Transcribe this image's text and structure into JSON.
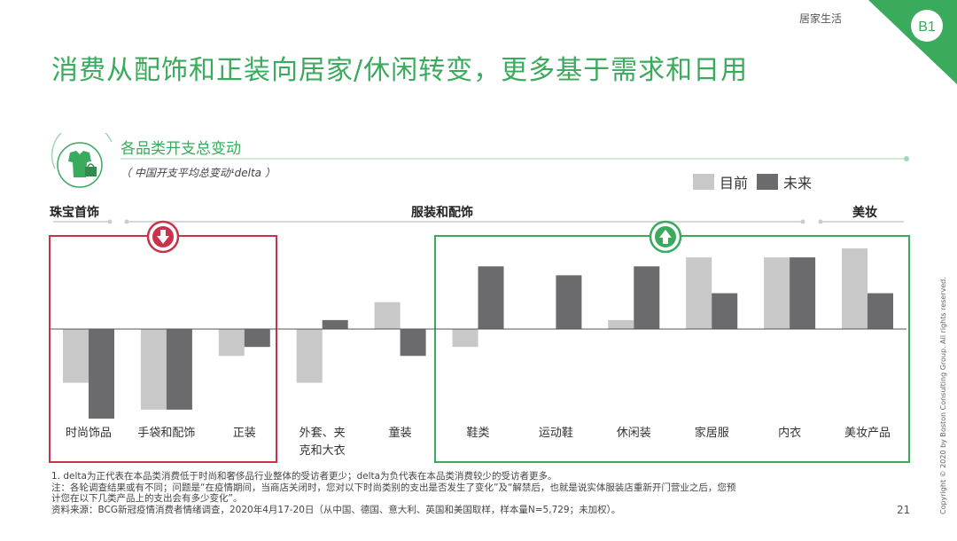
{
  "header": {
    "topic": "居家生活",
    "badge": "B1"
  },
  "title": "消费从配饰和正装向居家/休闲转变，更多基于需求和日用",
  "section": {
    "subtitle": "各品类开支总变动",
    "note": "（ 中国开支平均总变动¹delta ）"
  },
  "legend": {
    "current": "目前",
    "future": "未来"
  },
  "colors": {
    "current": "#c8c8c8",
    "future": "#6b6b6e",
    "accent_green": "#3aaa5c",
    "accent_red": "#c8324a"
  },
  "icons": {
    "section_icon": "clothing-shopping-icon",
    "down": "arrow-down-icon",
    "up": "arrow-up-icon"
  },
  "groups": [
    {
      "name": "珠宝首饰"
    },
    {
      "name": "服装和配饰"
    },
    {
      "name": "美妆"
    }
  ],
  "chart_data": {
    "type": "bar",
    "categories": [
      "时尚饰品",
      "手袋和配饰",
      "正装",
      "外套、夹克和大衣",
      "童装",
      "鞋类",
      "运动鞋",
      "休闲装",
      "家居服",
      "内衣",
      "美妆产品"
    ],
    "category_lines": [
      [
        "时尚饰品"
      ],
      [
        "手袋和配饰"
      ],
      [
        "正装"
      ],
      [
        "外套、夹",
        "克和大衣"
      ],
      [
        "童装"
      ],
      [
        "鞋类"
      ],
      [
        "运动鞋"
      ],
      [
        "休闲装"
      ],
      [
        "家居服"
      ],
      [
        "内衣"
      ],
      [
        "美妆产品"
      ]
    ],
    "series": [
      {
        "name": "目前",
        "values": [
          -6,
          -9,
          -3,
          -6,
          3,
          -2,
          0,
          1,
          8,
          8,
          9
        ]
      },
      {
        "name": "未来",
        "values": [
          -10,
          -9,
          -2,
          1,
          -3,
          7,
          6,
          7,
          4,
          8,
          4
        ]
      }
    ],
    "ylim": [
      -11,
      10
    ],
    "title": "",
    "xlabel": "",
    "ylabel": ""
  },
  "footnotes": {
    "line1": "1. delta为正代表在本品类消费低于时尚和奢侈品行业整体的受访者更少；delta为负代表在本品类消费较少的受访者更多。",
    "line2": "注：各轮调查结果或有不同；问题是“在疫情期间，当商店关闭时，您对以下时尚类别的支出是否发生了变化”及“解禁后，也就是说实体服装店重新开门营业之后，您预",
    "line3": "计您在以下几类产品上的支出会有多少变化”。",
    "line4": "资料来源：BCG新冠疫情消费者情绪调查，2020年4月17-20日（从中国、德国、意大利、英国和美国取样，样本量N=5,729；未加权）。"
  },
  "page_number": "21",
  "copyright": "Copyright © 2020 by Boston Consulting Group. All rights reserved."
}
